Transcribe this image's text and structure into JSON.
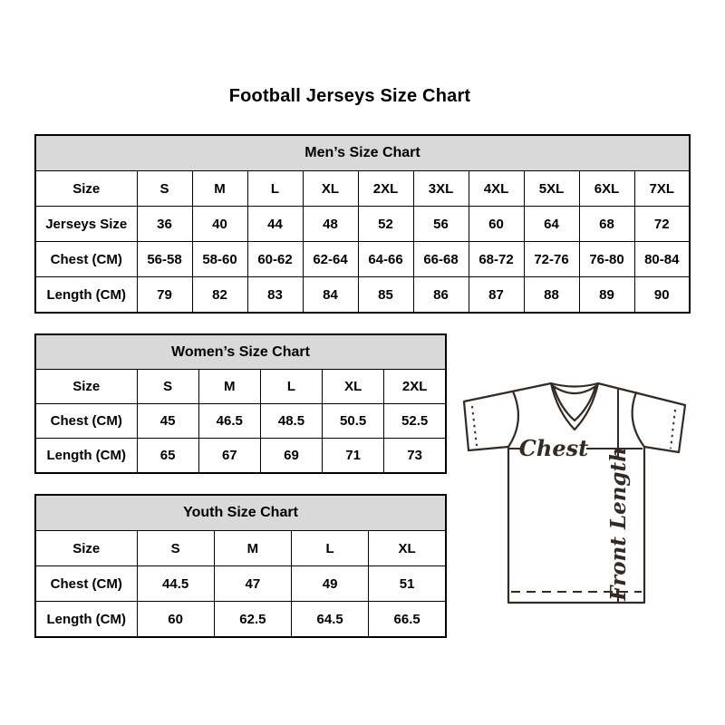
{
  "page": {
    "title": "Football Jerseys Size Chart"
  },
  "tables": {
    "mens": {
      "header": "Men’s Size Chart",
      "rows": [
        [
          "Size",
          "S",
          "M",
          "L",
          "XL",
          "2XL",
          "3XL",
          "4XL",
          "5XL",
          "6XL",
          "7XL"
        ],
        [
          "Jerseys Size",
          "36",
          "40",
          "44",
          "48",
          "52",
          "56",
          "60",
          "64",
          "68",
          "72"
        ],
        [
          "Chest (CM)",
          "56-58",
          "58-60",
          "60-62",
          "62-64",
          "64-66",
          "66-68",
          "68-72",
          "72-76",
          "76-80",
          "80-84"
        ],
        [
          "Length (CM)",
          "79",
          "82",
          "83",
          "84",
          "85",
          "86",
          "87",
          "88",
          "89",
          "90"
        ]
      ]
    },
    "womens": {
      "header": "Women’s Size Chart",
      "rows": [
        [
          "Size",
          "S",
          "M",
          "L",
          "XL",
          "2XL"
        ],
        [
          "Chest (CM)",
          "45",
          "46.5",
          "48.5",
          "50.5",
          "52.5"
        ],
        [
          "Length (CM)",
          "65",
          "67",
          "69",
          "71",
          "73"
        ]
      ]
    },
    "youth": {
      "header": "Youth Size Chart",
      "rows": [
        [
          "Size",
          "S",
          "M",
          "L",
          "XL"
        ],
        [
          "Chest (CM)",
          "44.5",
          "47",
          "49",
          "51"
        ],
        [
          "Length (CM)",
          "60",
          "62.5",
          "64.5",
          "66.5"
        ]
      ]
    }
  },
  "diagram": {
    "chest_label": "Chest",
    "front_length_label": "Front Length"
  },
  "colors": {
    "table_header_bg": "#d9d9d9",
    "table_border": "#000000",
    "diagram_line": "#332a26"
  }
}
